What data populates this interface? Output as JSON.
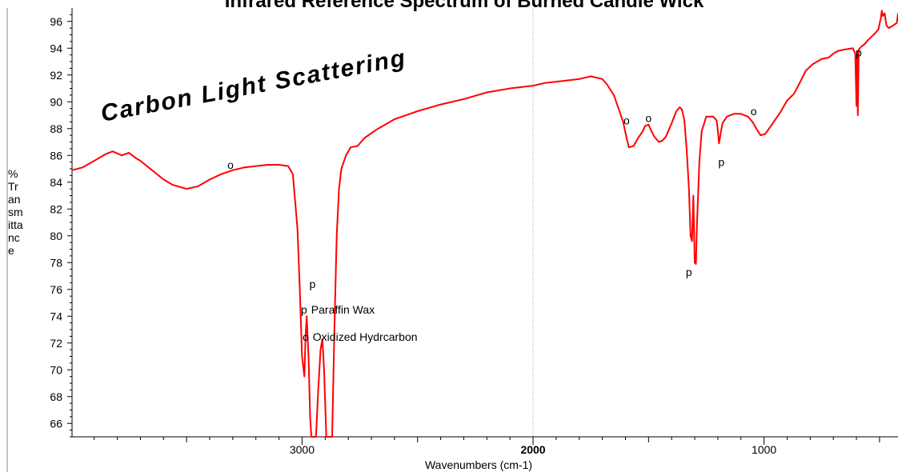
{
  "chart_data": {
    "type": "line",
    "title": "Infrared Reference Spectrum of Burned Candle Wick",
    "xlabel": "Wavenumbers (cm-1)",
    "ylabel": [
      "%",
      "Tr",
      "an",
      "sm",
      "itta",
      "nc",
      "e"
    ],
    "xlim": [
      3996,
      420
    ],
    "ylim": [
      65,
      97
    ],
    "x_ticks": [
      "3000",
      "2000",
      "1000"
    ],
    "y_ticks": [
      "66",
      "68",
      "70",
      "72",
      "74",
      "76",
      "78",
      "80",
      "82",
      "84",
      "86",
      "88",
      "90",
      "92",
      "94",
      "96"
    ],
    "grid": "vertical line at 2000",
    "line_color": "#ff0000",
    "series": [
      {
        "points": [
          [
            3996,
            84.9
          ],
          [
            3950,
            85.1
          ],
          [
            3900,
            85.6
          ],
          [
            3850,
            86.1
          ],
          [
            3820,
            86.3
          ],
          [
            3780,
            86.0
          ],
          [
            3750,
            86.2
          ],
          [
            3720,
            85.8
          ],
          [
            3700,
            85.6
          ],
          [
            3650,
            84.9
          ],
          [
            3600,
            84.2
          ],
          [
            3560,
            83.8
          ],
          [
            3500,
            83.5
          ],
          [
            3450,
            83.7
          ],
          [
            3400,
            84.2
          ],
          [
            3350,
            84.6
          ],
          [
            3300,
            84.9
          ],
          [
            3250,
            85.1
          ],
          [
            3200,
            85.2
          ],
          [
            3150,
            85.3
          ],
          [
            3100,
            85.3
          ],
          [
            3060,
            85.2
          ],
          [
            3040,
            84.6
          ],
          [
            3020,
            80.5
          ],
          [
            3010,
            76.0
          ],
          [
            3000,
            71.0
          ],
          [
            2990,
            69.5
          ],
          [
            2985,
            72.5
          ],
          [
            2980,
            74.0
          ],
          [
            2972,
            71.0
          ],
          [
            2965,
            66.5
          ],
          [
            2960,
            65.0
          ],
          [
            2940,
            65.0
          ],
          [
            2930,
            68.5
          ],
          [
            2920,
            71.5
          ],
          [
            2912,
            72.3
          ],
          [
            2905,
            70.0
          ],
          [
            2895,
            65.0
          ],
          [
            2870,
            65.0
          ],
          [
            2860,
            73.0
          ],
          [
            2850,
            80.0
          ],
          [
            2840,
            83.5
          ],
          [
            2830,
            85.0
          ],
          [
            2810,
            86.0
          ],
          [
            2790,
            86.6
          ],
          [
            2760,
            86.7
          ],
          [
            2730,
            87.3
          ],
          [
            2680,
            87.9
          ],
          [
            2600,
            88.7
          ],
          [
            2500,
            89.3
          ],
          [
            2400,
            89.8
          ],
          [
            2300,
            90.2
          ],
          [
            2200,
            90.7
          ],
          [
            2100,
            91.0
          ],
          [
            2000,
            91.2
          ],
          [
            1950,
            91.4
          ],
          [
            1900,
            91.5
          ],
          [
            1850,
            91.6
          ],
          [
            1800,
            91.7
          ],
          [
            1750,
            91.9
          ],
          [
            1700,
            91.7
          ],
          [
            1680,
            91.3
          ],
          [
            1650,
            90.5
          ],
          [
            1630,
            89.5
          ],
          [
            1610,
            88.5
          ],
          [
            1595,
            87.3
          ],
          [
            1585,
            86.6
          ],
          [
            1565,
            86.7
          ],
          [
            1545,
            87.3
          ],
          [
            1525,
            87.8
          ],
          [
            1515,
            88.2
          ],
          [
            1500,
            88.3
          ],
          [
            1490,
            87.9
          ],
          [
            1475,
            87.4
          ],
          [
            1455,
            87.0
          ],
          [
            1440,
            87.1
          ],
          [
            1425,
            87.4
          ],
          [
            1400,
            88.4
          ],
          [
            1380,
            89.3
          ],
          [
            1365,
            89.6
          ],
          [
            1355,
            89.4
          ],
          [
            1345,
            88.6
          ],
          [
            1335,
            86.5
          ],
          [
            1325,
            83.5
          ],
          [
            1318,
            80.0
          ],
          [
            1312,
            79.6
          ],
          [
            1306,
            83.0
          ],
          [
            1300,
            78.0
          ],
          [
            1295,
            77.9
          ],
          [
            1290,
            81.0
          ],
          [
            1280,
            85.5
          ],
          [
            1270,
            87.8
          ],
          [
            1250,
            88.9
          ],
          [
            1220,
            88.9
          ],
          [
            1205,
            88.6
          ],
          [
            1198,
            87.5
          ],
          [
            1195,
            86.9
          ],
          [
            1190,
            87.4
          ],
          [
            1180,
            88.4
          ],
          [
            1160,
            88.9
          ],
          [
            1130,
            89.1
          ],
          [
            1100,
            89.1
          ],
          [
            1070,
            88.9
          ],
          [
            1050,
            88.5
          ],
          [
            1030,
            87.9
          ],
          [
            1015,
            87.5
          ],
          [
            995,
            87.6
          ],
          [
            970,
            88.2
          ],
          [
            930,
            89.2
          ],
          [
            900,
            90.1
          ],
          [
            870,
            90.6
          ],
          [
            840,
            91.6
          ],
          [
            820,
            92.3
          ],
          [
            790,
            92.8
          ],
          [
            750,
            93.2
          ],
          [
            720,
            93.3
          ],
          [
            700,
            93.6
          ],
          [
            680,
            93.8
          ],
          [
            650,
            93.9
          ],
          [
            615,
            94.0
          ],
          [
            605,
            93.6
          ],
          [
            600,
            89.7
          ],
          [
            597,
            93.8
          ],
          [
            594,
            89.0
          ],
          [
            590,
            93.9
          ],
          [
            580,
            94.1
          ],
          [
            565,
            94.3
          ],
          [
            550,
            94.6
          ],
          [
            520,
            95.1
          ],
          [
            505,
            95.4
          ],
          [
            500,
            95.8
          ],
          [
            495,
            96.2
          ],
          [
            490,
            96.8
          ],
          [
            485,
            96.4
          ],
          [
            478,
            96.6
          ],
          [
            470,
            95.7
          ],
          [
            460,
            95.5
          ],
          [
            440,
            95.7
          ],
          [
            425,
            95.9
          ],
          [
            420,
            96.6
          ]
        ]
      }
    ],
    "annotations": [
      {
        "label": "o",
        "x": 3310,
        "y": 85.0
      },
      {
        "label": "p",
        "x": 2955,
        "y": 76.1
      },
      {
        "label": "o",
        "x": 1595,
        "y": 88.3
      },
      {
        "label": "o",
        "x": 1500,
        "y": 88.5
      },
      {
        "label": "p",
        "x": 1325,
        "y": 77.0
      },
      {
        "label": "p",
        "x": 1185,
        "y": 85.2
      },
      {
        "label": "o",
        "x": 1045,
        "y": 89.0
      },
      {
        "label": "p",
        "x": 590,
        "y": 93.4
      }
    ],
    "legend": [
      {
        "symbol": "p",
        "text": "Paraffin Wax"
      },
      {
        "symbol": "o",
        "text": "Oxidized Hydrcarbon"
      }
    ],
    "watermark_text": "Carbon Light Scattering"
  }
}
